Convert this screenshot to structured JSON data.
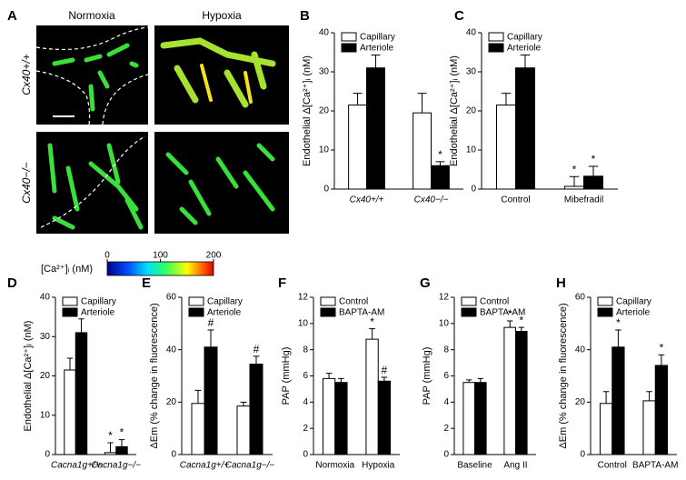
{
  "chart_data": [
    {
      "type": "image",
      "panel": "A",
      "columns": [
        "Normoxia",
        "Hypoxia"
      ],
      "rows": [
        "Cx40+/+",
        "Cx40−/−"
      ],
      "colorbar": {
        "label": "[Ca²⁺]ᵢ (nM)",
        "lim": [
          0,
          200
        ],
        "ticks": [
          0,
          100,
          200
        ]
      }
    },
    {
      "type": "bar",
      "panel": "B",
      "ylabel": "Endothelial Δ[Ca²⁺]ᵢ (nM)",
      "categories": [
        "Cx40+/+",
        "Cx40−/−"
      ],
      "series": [
        {
          "name": "Capillary",
          "color": "#ffffff",
          "values": [
            21.5,
            19.5
          ],
          "errors": [
            3,
            5
          ],
          "sig": [
            null,
            null
          ]
        },
        {
          "name": "Arteriole",
          "color": "#000000",
          "values": [
            31,
            6
          ],
          "errors": [
            3.3,
            1
          ],
          "sig": [
            null,
            "*"
          ]
        }
      ],
      "ylim": [
        0,
        40
      ],
      "yticks": [
        0,
        10,
        20,
        30,
        40
      ]
    },
    {
      "type": "bar",
      "panel": "C",
      "ylabel": "Endothelial Δ[Ca²⁺]ᵢ (nM)",
      "categories": [
        "Control",
        "Mibefradil"
      ],
      "series": [
        {
          "name": "Capillary",
          "color": "#ffffff",
          "values": [
            21.5,
            0.7
          ],
          "errors": [
            3,
            2.5
          ],
          "sig": [
            null,
            "*"
          ]
        },
        {
          "name": "Arteriole",
          "color": "#000000",
          "values": [
            31,
            3.3
          ],
          "errors": [
            3.3,
            2.5
          ],
          "sig": [
            null,
            "*"
          ]
        }
      ],
      "ylim": [
        0,
        40
      ],
      "yticks": [
        0,
        10,
        20,
        30,
        40
      ]
    },
    {
      "type": "bar",
      "panel": "D",
      "ylabel": "Endothelial Δ[Ca²⁺]ᵢ (nM)",
      "categories": [
        "Cacna1g+/+",
        "Cacna1g−/−"
      ],
      "series": [
        {
          "name": "Capillary",
          "color": "#ffffff",
          "values": [
            21.5,
            0.5
          ],
          "errors": [
            3,
            2.5
          ],
          "sig": [
            null,
            "*"
          ]
        },
        {
          "name": "Arteriole",
          "color": "#000000",
          "values": [
            31,
            2
          ],
          "errors": [
            3.5,
            1.8
          ],
          "sig": [
            null,
            "*"
          ]
        }
      ],
      "ylim": [
        0,
        40
      ],
      "yticks": [
        0,
        10,
        20,
        30,
        40
      ]
    },
    {
      "type": "bar",
      "panel": "E",
      "ylabel": "ΔEm (% change in fluorescence)",
      "categories": [
        "Cacna1g+/+",
        "Cacna1g−/−"
      ],
      "series": [
        {
          "name": "Capillary",
          "color": "#ffffff",
          "values": [
            19.5,
            18.5
          ],
          "errors": [
            5,
            1.5
          ],
          "sig": [
            null,
            null
          ]
        },
        {
          "name": "Arteriole",
          "color": "#000000",
          "values": [
            41,
            34.5
          ],
          "errors": [
            6.5,
            3
          ],
          "sig": [
            "#",
            "#"
          ]
        }
      ],
      "ylim": [
        0,
        60
      ],
      "yticks": [
        0,
        20,
        40,
        60
      ]
    },
    {
      "type": "bar",
      "panel": "F",
      "ylabel": "PAP (mmHg)",
      "categories": [
        "Normoxia",
        "Hypoxia"
      ],
      "series": [
        {
          "name": "Control",
          "color": "#ffffff",
          "values": [
            5.8,
            8.8
          ],
          "errors": [
            0.4,
            0.8
          ],
          "sig": [
            null,
            "*"
          ]
        },
        {
          "name": "BAPTA-AM",
          "color": "#000000",
          "values": [
            5.5,
            5.6
          ],
          "errors": [
            0.3,
            0.3
          ],
          "sig": [
            null,
            "#"
          ]
        }
      ],
      "ylim": [
        0,
        12
      ],
      "yticks": [
        0,
        2,
        4,
        6,
        8,
        10,
        12
      ]
    },
    {
      "type": "bar",
      "panel": "G",
      "ylabel": "PAP (mmHg)",
      "categories": [
        "Baseline",
        "Ang II"
      ],
      "series": [
        {
          "name": "Control",
          "color": "#ffffff",
          "values": [
            5.5,
            9.7
          ],
          "errors": [
            0.2,
            0.5
          ],
          "sig": [
            null,
            "*"
          ]
        },
        {
          "name": "BAPTA-AM",
          "color": "#000000",
          "values": [
            5.5,
            9.4
          ],
          "errors": [
            0.3,
            0.3
          ],
          "sig": [
            null,
            "*"
          ]
        }
      ],
      "ylim": [
        0,
        12
      ],
      "yticks": [
        0,
        2,
        4,
        6,
        8,
        10,
        12
      ]
    },
    {
      "type": "bar",
      "panel": "H",
      "ylabel": "ΔEm (% change in fluorescence)",
      "categories": [
        "Control",
        "BAPTA-AM"
      ],
      "series": [
        {
          "name": "Capillary",
          "color": "#ffffff",
          "values": [
            19.5,
            20.5
          ],
          "errors": [
            4.5,
            3.5
          ],
          "sig": [
            null,
            null
          ]
        },
        {
          "name": "Arteriole",
          "color": "#000000",
          "values": [
            41,
            34
          ],
          "errors": [
            6.5,
            4
          ],
          "sig": [
            "*",
            "*"
          ]
        }
      ],
      "ylim": [
        0,
        60
      ],
      "yticks": [
        0,
        20,
        40,
        60
      ]
    }
  ]
}
